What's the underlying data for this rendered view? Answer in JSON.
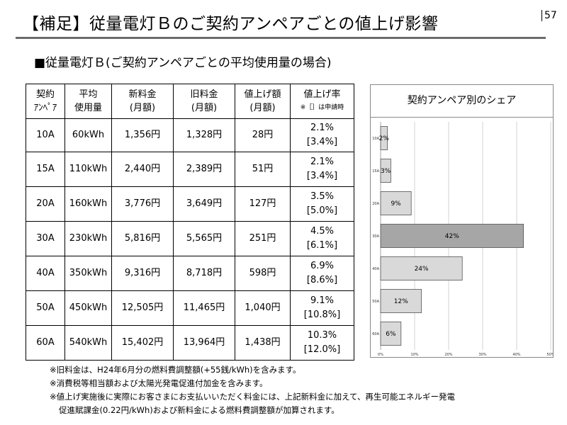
{
  "header": {
    "title": "【補足】従量電灯Ｂのご契約アンペアごとの値上げ影響",
    "page_number": "57"
  },
  "subtitle": "■従量電灯Ｂ(ご契約アンペアごとの平均使用量の場合)",
  "table": {
    "columns": [
      {
        "l1": "契約",
        "l2": "ｱﾝﾍﾟｱ"
      },
      {
        "l1": "平均",
        "l2": "使用量"
      },
      {
        "l1": "新料金",
        "l2": "(月額)"
      },
      {
        "l1": "旧料金",
        "l2": "(月額)"
      },
      {
        "l1": "値上げ額",
        "l2": "(月額)"
      },
      {
        "l1": "値上げ率",
        "l2": "※［］は申請時"
      }
    ],
    "rows": [
      {
        "amp": "10A",
        "usage": "60kWh",
        "new": "1,356円",
        "old": "1,328円",
        "diff": "28円",
        "rate": "2.1%",
        "applied": "[3.4%]"
      },
      {
        "amp": "15A",
        "usage": "110kWh",
        "new": "2,440円",
        "old": "2,389円",
        "diff": "51円",
        "rate": "2.1%",
        "applied": "[3.4%]"
      },
      {
        "amp": "20A",
        "usage": "160kWh",
        "new": "3,776円",
        "old": "3,649円",
        "diff": "127円",
        "rate": "3.5%",
        "applied": "[5.0%]"
      },
      {
        "amp": "30A",
        "usage": "230kWh",
        "new": "5,816円",
        "old": "5,565円",
        "diff": "251円",
        "rate": "4.5%",
        "applied": "[6.1%]"
      },
      {
        "amp": "40A",
        "usage": "350kWh",
        "new": "9,316円",
        "old": "8,718円",
        "diff": "598円",
        "rate": "6.9%",
        "applied": "[8.6%]"
      },
      {
        "amp": "50A",
        "usage": "450kWh",
        "new": "12,505円",
        "old": "11,465円",
        "diff": "1,040円",
        "rate": "9.1%",
        "applied": "[10.8%]"
      },
      {
        "amp": "60A",
        "usage": "540kWh",
        "new": "15,402円",
        "old": "13,964円",
        "diff": "1,438円",
        "rate": "10.3%",
        "applied": "[12.0%]"
      }
    ]
  },
  "chart_data": {
    "type": "bar",
    "orientation": "horizontal",
    "title": "契約アンペア別のシェア",
    "categories": [
      "10A",
      "15A",
      "20A",
      "30A",
      "40A",
      "50A",
      "60A"
    ],
    "values": [
      2,
      3,
      9,
      42,
      24,
      12,
      6
    ],
    "value_labels": [
      "2%",
      "3%",
      "9%",
      "42%",
      "24%",
      "12%",
      "6%"
    ],
    "xlim": [
      0,
      50
    ],
    "x_ticks": [
      "0%",
      "10%",
      "20%",
      "30%",
      "40%",
      "50%"
    ],
    "grid": true,
    "bar_colors": [
      "#d9d9d9",
      "#d9d9d9",
      "#d9d9d9",
      "#a6a6a6",
      "#d9d9d9",
      "#d9d9d9",
      "#d9d9d9"
    ]
  },
  "notes": [
    "※旧料金は、H24年6月分の燃料費調整額(+55銭/kWh)を含みます。",
    "※消費税等相当額および太陽光発電促進付加金を含みます。",
    "※値上げ実施後に実際にお客さまにお支払いいただく料金には、上記新料金に加えて、再生可能エネルギー発電",
    "促進賦課金(0.22円/kWh)および新料金による燃料費調整額が加算されます。"
  ]
}
